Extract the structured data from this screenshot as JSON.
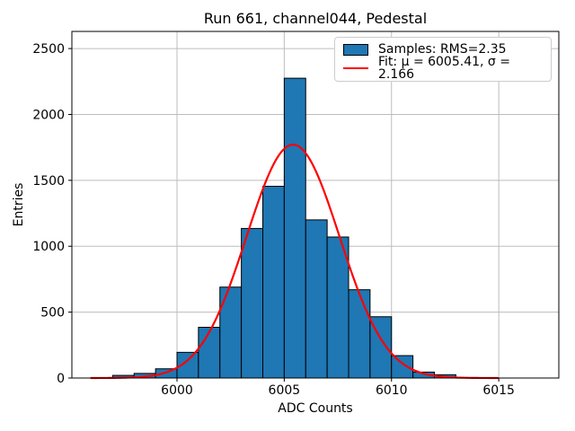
{
  "title": "Run 661, channel044, Pedestal",
  "axes": {
    "xlabel": "ADC Counts",
    "ylabel": "Entries",
    "x_ticks": [
      6000,
      6005,
      6010,
      6015
    ],
    "y_ticks": [
      0,
      500,
      1000,
      1500,
      2000,
      2500
    ]
  },
  "legend": {
    "samples_label": "Samples: RMS=2.35",
    "fit_label": "Fit: μ = 6005.41, σ = 2.166"
  },
  "colors": {
    "bar_fill": "#1f77b4",
    "bar_edge": "#000000",
    "fit_line": "#ff0000",
    "grid": "#bdbdbd",
    "spine": "#000000",
    "background": "#ffffff"
  },
  "chart_data": {
    "type": "bar",
    "subtype": "histogram-with-gaussian-fit",
    "title": "Run 661, channel044, Pedestal",
    "xlabel": "ADC Counts",
    "ylabel": "Entries",
    "xlim": [
      5995.1,
      6017.8
    ],
    "ylim": [
      0,
      2630
    ],
    "grid": true,
    "legend_position": "upper right",
    "bin_width": 1,
    "bin_left_edges": [
      5997,
      5998,
      5999,
      6000,
      6001,
      6002,
      6003,
      6004,
      6005,
      6006,
      6007,
      6008,
      6009,
      6010,
      6011,
      6012
    ],
    "counts": [
      20,
      35,
      70,
      195,
      385,
      690,
      1135,
      1455,
      2275,
      1200,
      1070,
      670,
      465,
      170,
      45,
      25
    ],
    "series": [
      {
        "name": "Samples: RMS=2.35",
        "kind": "histogram",
        "rms": 2.35,
        "color": "#1f77b4"
      },
      {
        "name": "Fit: μ = 6005.41, σ = 2.166",
        "kind": "gaussian",
        "mu": 6005.41,
        "sigma": 2.166,
        "amplitude": 1771,
        "x_range": [
          5996,
          6015
        ],
        "color": "#ff0000"
      }
    ]
  }
}
